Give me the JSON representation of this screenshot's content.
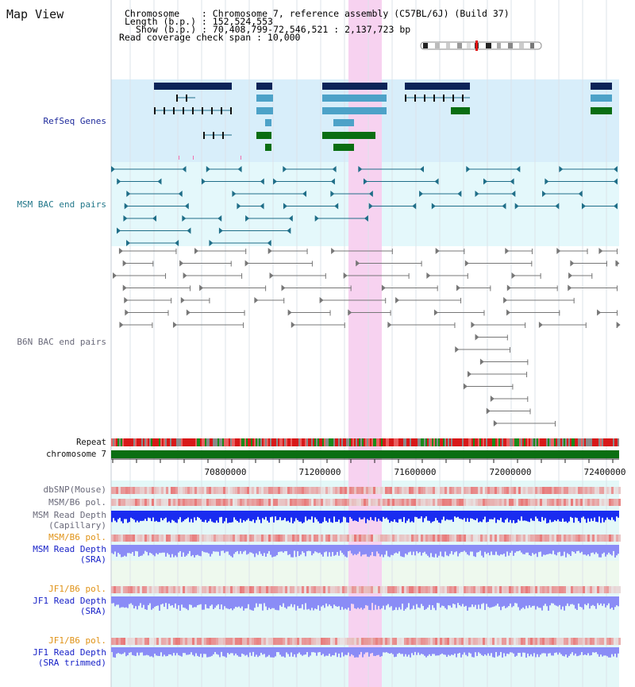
{
  "header": {
    "title": "Map View",
    "chromosome_line": "Chromosome    : Chromosome 7, reference assembly (C57BL/6J) (Build 37)",
    "length_line": "Length (b.p.) : 152,524,553",
    "show_line": "Show (b.p.) : 70,408,799-72,546,521 : 2,137,723 bp",
    "coverage_line": "Read coverage check span : 10,000"
  },
  "tracks": {
    "refseq": "RefSeq Genes",
    "msm_bac": "MSM BAC end pairs",
    "b6n_bac": "B6N BAC end pairs",
    "repeat": "Repeat",
    "chromosome": "chromosome 7",
    "dbsnp": "dbSNP(Mouse)",
    "msm_b6_pol_1": "MSM/B6 pol.",
    "msm_read_depth_cap_1": "MSM Read Depth",
    "msm_read_depth_cap_2": "(Capillary)",
    "msm_b6_pol_2": "MSM/B6 pol.",
    "msm_read_depth_sra_1": "MSM Read Depth",
    "msm_read_depth_sra_2": "(SRA)",
    "jf1_b6_pol_1": "JF1/B6 pol.",
    "jf1_read_depth_sra_1": "JF1 Read Depth",
    "jf1_read_depth_sra_2": "(SRA)",
    "jf1_b6_pol_2": "JF1/B6 pol.",
    "jf1_read_depth_trim_1": "JF1 Read Depth",
    "jf1_read_depth_trim_2": "(SRA trimmed)"
  },
  "axis": {
    "ticks": [
      "70800000",
      "71200000",
      "71600000",
      "72000000",
      "72400000"
    ]
  },
  "colors": {
    "refseq_bg": "#d8eefa",
    "bac_bg": "#e4f8fb",
    "depth_bg": "#e4f8f8",
    "highlight": "#f7d2f0",
    "navy_gene": "#0c2458",
    "mid_gene": "#4da2c8",
    "green_gene": "#0a6e12",
    "chromosome_bar": "#0a6e12",
    "msm_bac_line": "#1f6e88",
    "b6n_bac_line": "#777777",
    "depth_dark": "#1a2cf0",
    "depth_light": "#8a8cf6",
    "snp_red": "#e83c3c"
  }
}
